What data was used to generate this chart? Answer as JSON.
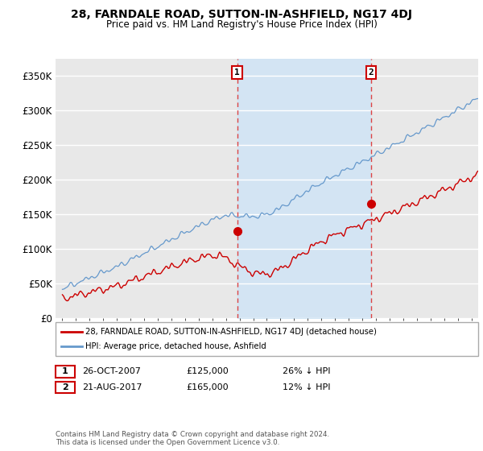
{
  "title": "28, FARNDALE ROAD, SUTTON-IN-ASHFIELD, NG17 4DJ",
  "subtitle": "Price paid vs. HM Land Registry's House Price Index (HPI)",
  "ylabel_ticks": [
    "£0",
    "£50K",
    "£100K",
    "£150K",
    "£200K",
    "£250K",
    "£300K",
    "£350K"
  ],
  "ytick_values": [
    0,
    50000,
    100000,
    150000,
    200000,
    250000,
    300000,
    350000
  ],
  "ylim": [
    0,
    375000
  ],
  "xlim_start": 1994.5,
  "xlim_end": 2025.5,
  "sale1_year": 2007.82,
  "sale1_price": 125000,
  "sale2_year": 2017.64,
  "sale2_price": 165000,
  "sale1_date": "26-OCT-2007",
  "sale1_hpi_diff": "26% ↓ HPI",
  "sale2_date": "21-AUG-2017",
  "sale2_hpi_diff": "12% ↓ HPI",
  "legend_line1": "28, FARNDALE ROAD, SUTTON-IN-ASHFIELD, NG17 4DJ (detached house)",
  "legend_line2": "HPI: Average price, detached house, Ashfield",
  "footer": "Contains HM Land Registry data © Crown copyright and database right 2024.\nThis data is licensed under the Open Government Licence v3.0.",
  "line_red_color": "#cc0000",
  "line_blue_color": "#6699cc",
  "fill_blue_color": "#d0e4f5",
  "bg_color": "#e8e8e8",
  "grid_color": "#ffffff",
  "dashed_color": "#dd4444"
}
